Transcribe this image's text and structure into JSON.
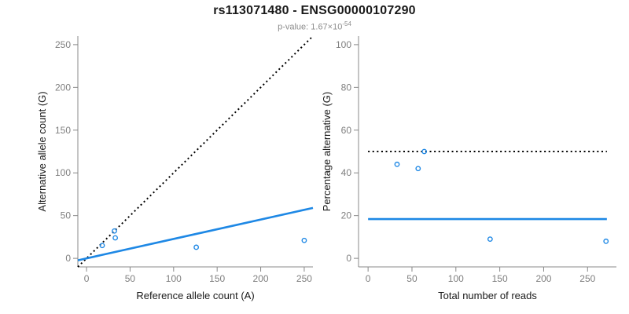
{
  "chart_data": {
    "figure_title": "rs113071480 - ENSG00000107290",
    "p_value": {
      "prefix": "p-value: 1.67×10",
      "exponent": "-54"
    },
    "accent_color": "#1e88e5",
    "panels": [
      {
        "name": "allele-count-scatter",
        "type": "scatter",
        "xlabel": "Reference allele count (A)",
        "ylabel": "Alternative allele count (G)",
        "xlim": [
          0,
          250
        ],
        "ylim": [
          0,
          250
        ],
        "xticks": [
          0,
          50,
          100,
          150,
          200,
          250
        ],
        "yticks": [
          0,
          50,
          100,
          150,
          200,
          250
        ],
        "grid": false,
        "points": [
          [
            18,
            15
          ],
          [
            32,
            32
          ],
          [
            33,
            24
          ],
          [
            126,
            13
          ],
          [
            250,
            21
          ]
        ],
        "lines": [
          {
            "name": "identity-line",
            "type": "abline",
            "slope": 1,
            "intercept": 0,
            "style": "dotted",
            "color": "#000000"
          },
          {
            "name": "fit-line",
            "type": "abline",
            "slope": 0.227,
            "intercept": 0,
            "style": "solid",
            "color": "#1e88e5"
          }
        ],
        "marker": {
          "shape": "open-circle",
          "color": "#1e88e5"
        }
      },
      {
        "name": "percentage-alternative-scatter",
        "type": "scatter",
        "xlabel": "Total number of reads",
        "ylabel": "Percentage alternative (G)",
        "xlim": [
          0,
          272
        ],
        "ylim": [
          0,
          100
        ],
        "xticks": [
          0,
          50,
          100,
          150,
          200,
          250
        ],
        "yticks": [
          0,
          20,
          40,
          60,
          80,
          100
        ],
        "grid": false,
        "points": [
          [
            33,
            44
          ],
          [
            57,
            42
          ],
          [
            64,
            50
          ],
          [
            139,
            9
          ],
          [
            271,
            8
          ]
        ],
        "lines": [
          {
            "name": "expected-50-percent-line",
            "type": "hline",
            "y": 50,
            "x_from": 0,
            "x_to": 272,
            "style": "dotted",
            "color": "#000000"
          },
          {
            "name": "mean-percentage-line",
            "type": "hline",
            "y": 18.4,
            "x_from": 0,
            "x_to": 272,
            "style": "solid",
            "color": "#1e88e5"
          }
        ],
        "marker": {
          "shape": "open-circle",
          "color": "#1e88e5"
        }
      }
    ]
  }
}
